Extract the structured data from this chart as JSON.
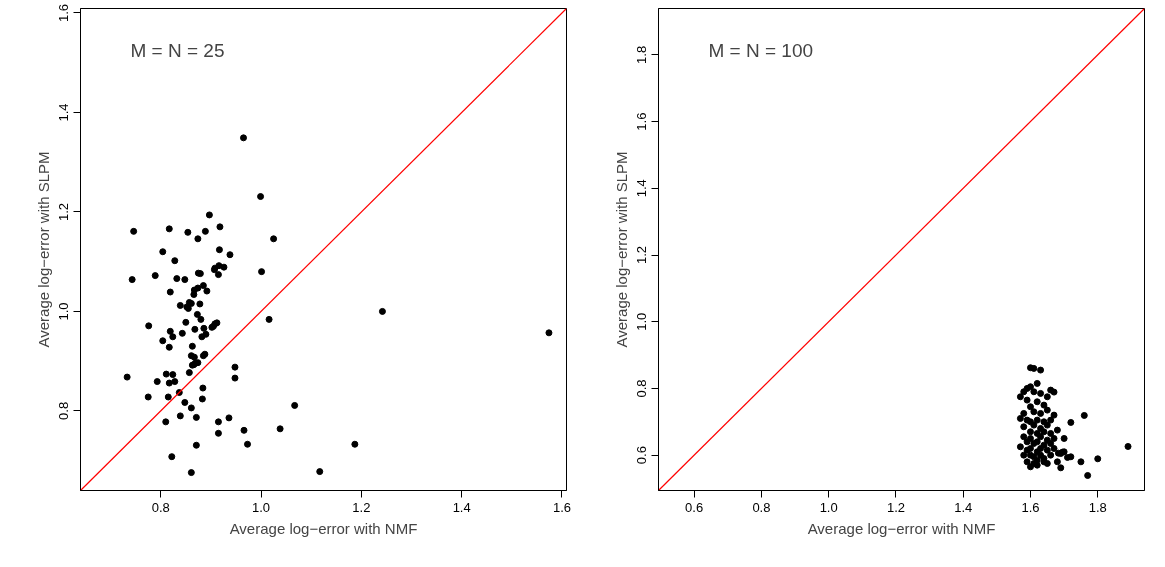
{
  "chart_data": [
    {
      "type": "scatter",
      "annotations": [
        "M = N = 25"
      ],
      "xlabel": "Average log−error with NMF",
      "ylabel": "Average log−error with SLPM",
      "xlim": [
        0.64,
        1.609
      ],
      "ylim": [
        0.64,
        1.609
      ],
      "xticks": [
        {
          "value": 0.8,
          "label": "0.8"
        },
        {
          "value": 1.0,
          "label": "1.0"
        },
        {
          "value": 1.2,
          "label": "1.2"
        },
        {
          "value": 1.4,
          "label": "1.4"
        },
        {
          "value": 1.6,
          "label": "1.6"
        }
      ],
      "yticks": [
        {
          "value": 0.8,
          "label": "0.8"
        },
        {
          "value": 1.0,
          "label": "1.0"
        },
        {
          "value": 1.2,
          "label": "1.2"
        },
        {
          "value": 1.4,
          "label": "1.4"
        },
        {
          "value": 1.6,
          "label": "1.6"
        }
      ],
      "series": [
        {
          "marker": "circle",
          "color": "#000000",
          "x": [
            0.965,
            0.999,
            0.897,
            0.746,
            0.817,
            0.854,
            0.889,
            0.918,
            0.874,
            1.025,
            0.804,
            0.917,
            0.938,
            0.828,
            0.908,
            0.916,
            0.926,
            0.907,
            0.915,
            1.001,
            0.743,
            0.789,
            0.832,
            0.848,
            0.875,
            0.879,
            0.867,
            0.874,
            0.885,
            0.892,
            0.819,
            0.866,
            0.839,
            0.852,
            0.857,
            0.861,
            0.855,
            0.878,
            0.873,
            0.88,
            0.776,
            0.85,
            0.819,
            0.843,
            0.824,
            0.868,
            0.886,
            0.902,
            0.908,
            0.912,
            0.905,
            0.882,
            0.89,
            0.804,
            0.817,
            0.863,
            1.016,
            0.861,
            0.867,
            0.885,
            0.888,
            0.863,
            0.869,
            0.874,
            0.866,
            0.857,
            0.733,
            0.811,
            0.824,
            0.793,
            0.817,
            0.828,
            0.948,
            0.948,
            0.837,
            0.884,
            0.775,
            0.815,
            0.883,
            0.848,
            0.861,
            1.067,
            0.839,
            0.871,
            0.81,
            0.915,
            0.936,
            0.915,
            0.966,
            1.038,
            0.871,
            0.973,
            0.822,
            0.861,
            1.242,
            1.574,
            1.187,
            1.117
          ],
          "values": [
            1.349,
            1.231,
            1.194,
            1.161,
            1.166,
            1.159,
            1.161,
            1.17,
            1.146,
            1.146,
            1.12,
            1.124,
            1.114,
            1.102,
            1.087,
            1.092,
            1.089,
            1.084,
            1.074,
            1.08,
            1.064,
            1.072,
            1.066,
            1.064,
            1.077,
            1.076,
            1.043,
            1.047,
            1.052,
            1.041,
            1.039,
            1.034,
            1.012,
            1.009,
            1.018,
            1.016,
            1.006,
            1.015,
            0.994,
            0.984,
            0.971,
            0.978,
            0.96,
            0.956,
            0.949,
            0.964,
            0.966,
            0.968,
            0.975,
            0.977,
            0.97,
            0.949,
            0.954,
            0.941,
            0.928,
            0.93,
            0.984,
            0.911,
            0.908,
            0.911,
            0.914,
            0.892,
            0.896,
            0.897,
            0.893,
            0.877,
            0.868,
            0.874,
            0.873,
            0.859,
            0.856,
            0.859,
            0.888,
            0.866,
            0.837,
            0.846,
            0.828,
            0.828,
            0.824,
            0.817,
            0.806,
            0.811,
            0.79,
            0.787,
            0.778,
            0.778,
            0.786,
            0.755,
            0.761,
            0.764,
            0.731,
            0.733,
            0.708,
            0.676,
            1.0,
            0.957,
            0.733,
            0.678
          ]
        },
        {
          "type": "line",
          "color": "#ff0000",
          "x": [
            0.64,
            1.609
          ],
          "values": [
            0.64,
            1.609
          ]
        }
      ]
    },
    {
      "type": "scatter",
      "annotations": [
        "M = N = 100"
      ],
      "xlabel": "Average log−error with NMF",
      "ylabel": "Average log−error with SLPM",
      "xlim": [
        0.494,
        1.939
      ],
      "ylim": [
        0.494,
        1.939
      ],
      "xticks": [
        {
          "value": 0.6,
          "label": "0.6"
        },
        {
          "value": 0.8,
          "label": "0.8"
        },
        {
          "value": 1.0,
          "label": "1.0"
        },
        {
          "value": 1.2,
          "label": "1.2"
        },
        {
          "value": 1.4,
          "label": "1.4"
        },
        {
          "value": 1.6,
          "label": "1.6"
        },
        {
          "value": 1.8,
          "label": "1.8"
        }
      ],
      "yticks": [
        {
          "value": 0.6,
          "label": "0.6"
        },
        {
          "value": 0.8,
          "label": "0.8"
        },
        {
          "value": 1.0,
          "label": "1.0"
        },
        {
          "value": 1.2,
          "label": "1.2"
        },
        {
          "value": 1.4,
          "label": "1.4"
        },
        {
          "value": 1.6,
          "label": "1.6"
        },
        {
          "value": 1.8,
          "label": "1.8"
        }
      ],
      "series": [
        {
          "marker": "circle",
          "color": "#000000",
          "x": [
            1.6,
            1.61,
            1.63,
            1.59,
            1.58,
            1.6,
            1.62,
            1.61,
            1.63,
            1.66,
            1.65,
            1.57,
            1.59,
            1.62,
            1.64,
            1.6,
            1.58,
            1.61,
            1.63,
            1.65,
            1.67,
            1.59,
            1.57,
            1.6,
            1.62,
            1.64,
            1.66,
            1.58,
            1.61,
            1.63,
            1.65,
            1.6,
            1.62,
            1.64,
            1.66,
            1.68,
            1.58,
            1.6,
            1.63,
            1.65,
            1.67,
            1.59,
            1.61,
            1.62,
            1.64,
            1.66,
            1.57,
            1.59,
            1.6,
            1.62,
            1.63,
            1.65,
            1.67,
            1.58,
            1.6,
            1.61,
            1.63,
            1.64,
            1.66,
            1.69,
            1.59,
            1.61,
            1.62,
            1.64,
            1.6,
            1.62,
            1.65,
            1.68,
            1.7,
            1.72,
            1.89,
            1.76,
            1.77,
            1.8,
            1.75,
            1.72,
            1.7,
            1.67,
            1.71,
            1.69,
            1.695,
            1.683
          ],
          "values": [
            0.862,
            0.86,
            0.855,
            0.8,
            0.79,
            0.805,
            0.815,
            0.79,
            0.785,
            0.795,
            0.775,
            0.775,
            0.765,
            0.76,
            0.75,
            0.745,
            0.725,
            0.73,
            0.725,
            0.735,
            0.72,
            0.705,
            0.71,
            0.7,
            0.705,
            0.7,
            0.705,
            0.685,
            0.69,
            0.68,
            0.69,
            0.67,
            0.665,
            0.67,
            0.665,
            0.675,
            0.655,
            0.65,
            0.655,
            0.645,
            0.65,
            0.64,
            0.635,
            0.64,
            0.63,
            0.635,
            0.625,
            0.615,
            0.62,
            0.61,
            0.62,
            0.615,
            0.62,
            0.6,
            0.6,
            0.595,
            0.6,
            0.59,
            0.6,
            0.605,
            0.58,
            0.575,
            0.585,
            0.58,
            0.565,
            0.57,
            0.575,
            0.58,
            0.61,
            0.595,
            0.626,
            0.719,
            0.539,
            0.589,
            0.58,
            0.698,
            0.65,
            0.789,
            0.593,
            0.562,
            0.609,
            0.606
          ]
        },
        {
          "type": "line",
          "color": "#ff0000",
          "x": [
            0.494,
            1.939
          ],
          "values": [
            0.494,
            1.939
          ]
        }
      ]
    }
  ]
}
